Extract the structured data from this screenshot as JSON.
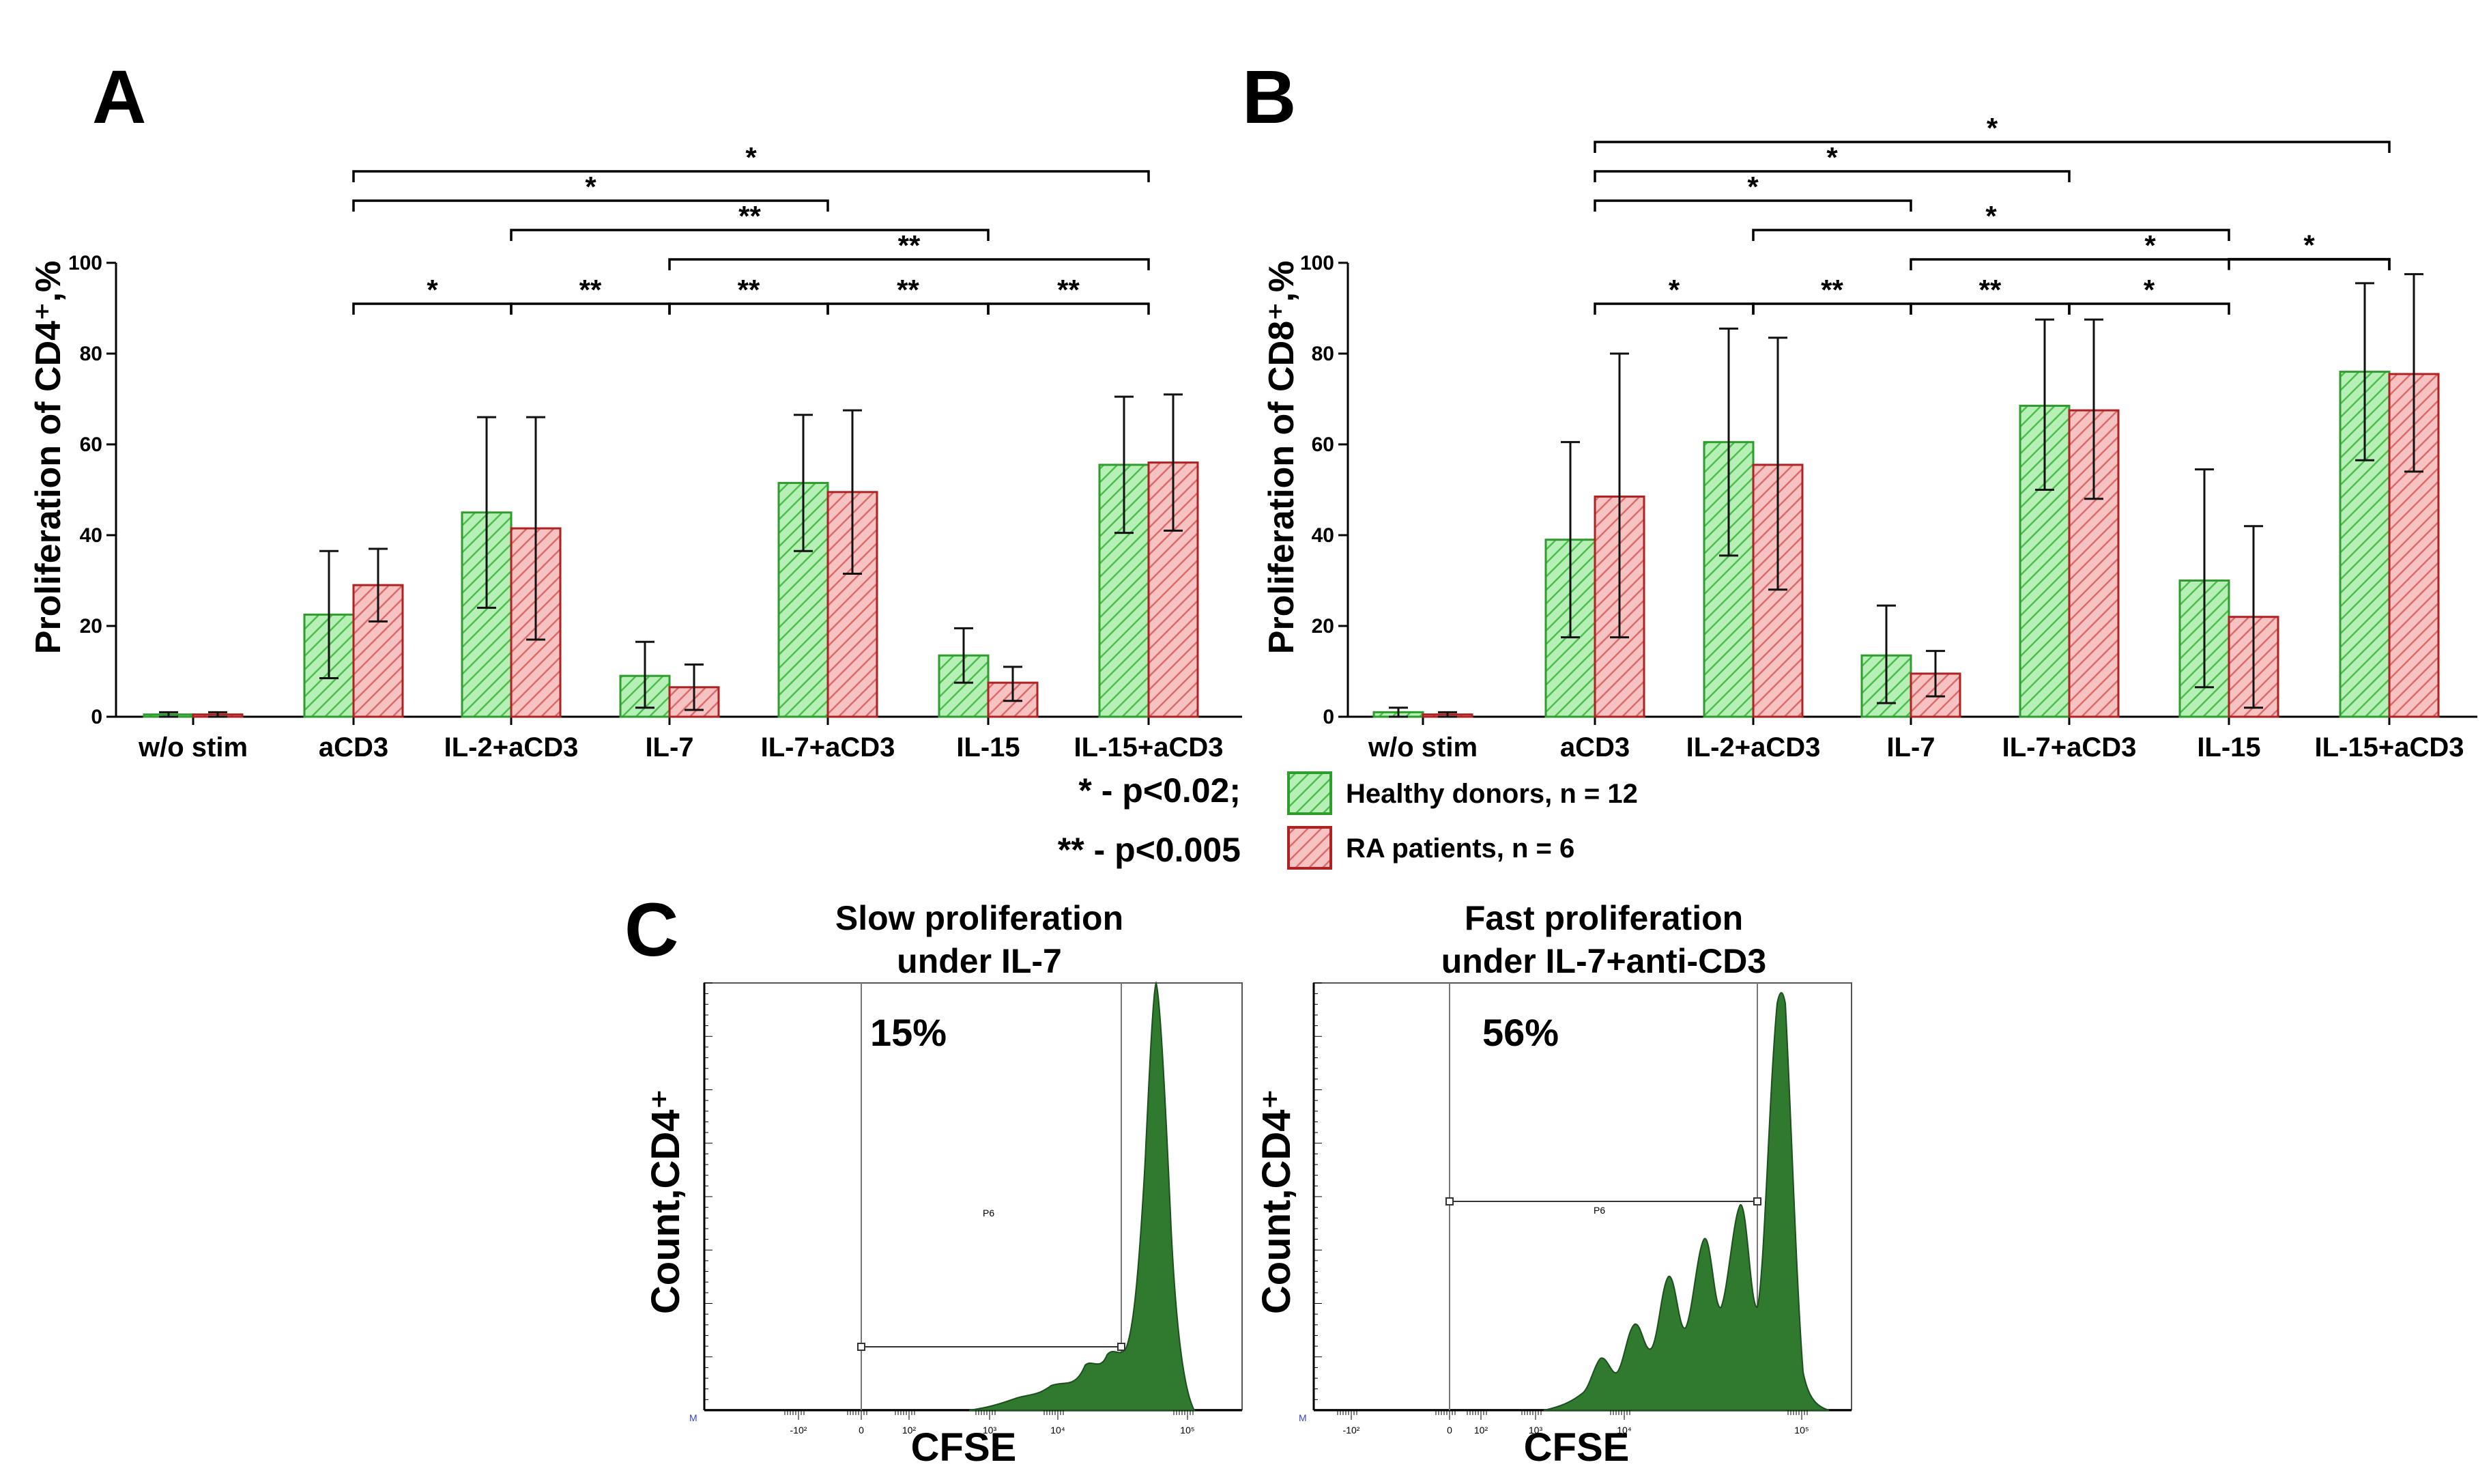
{
  "colors": {
    "healthy_fill": "#9be59b",
    "healthy_edge": "#2e9d2e",
    "ra_fill": "#f0a3a3",
    "ra_edge": "#b02222",
    "histogram": "#2f7a2f"
  },
  "chart_data": [
    {
      "panel": "A",
      "type": "bar",
      "ylabel": "Proliferation of CD4⁺,%",
      "ylim": [
        0,
        100
      ],
      "yticks": [
        0,
        20,
        40,
        60,
        80,
        100
      ],
      "categories": [
        "w/o stim",
        "aCD3",
        "IL-2+aCD3",
        "IL-7",
        "IL-7+aCD3",
        "IL-15",
        "IL-15+aCD3"
      ],
      "series": [
        {
          "name": "Healthy donors, n = 12",
          "values": [
            0.5,
            22.5,
            45,
            9,
            51.5,
            13.5,
            55.5
          ],
          "err_low": [
            0,
            8.5,
            24,
            2,
            36.5,
            7.5,
            40.5
          ],
          "err_high": [
            1,
            36.5,
            66,
            16.5,
            66.5,
            19.5,
            70.5
          ]
        },
        {
          "name": "RA patients, n = 6",
          "values": [
            0.5,
            29,
            41.5,
            6.5,
            49.5,
            7.5,
            56
          ],
          "err_low": [
            0,
            21,
            17,
            1.5,
            31.5,
            3.5,
            41
          ],
          "err_high": [
            1,
            37,
            66,
            11.5,
            67.5,
            11,
            71
          ]
        }
      ],
      "brackets": [
        {
          "from": 1,
          "to": 2,
          "label": "*"
        },
        {
          "from": 2,
          "to": 3,
          "label": "**"
        },
        {
          "from": 3,
          "to": 4,
          "label": "**"
        },
        {
          "from": 4,
          "to": 5,
          "label": "**"
        },
        {
          "from": 5,
          "to": 6,
          "label": "**"
        },
        {
          "from": 3,
          "to": 6,
          "label": "**"
        },
        {
          "from": 2,
          "to": 5,
          "label": "**"
        },
        {
          "from": 1,
          "to": 4,
          "label": "*"
        },
        {
          "from": 1,
          "to": 6,
          "label": "*"
        }
      ]
    },
    {
      "panel": "B",
      "type": "bar",
      "ylabel": "Proliferation of CD8⁺,%",
      "ylim": [
        0,
        100
      ],
      "yticks": [
        0,
        20,
        40,
        60,
        80,
        100
      ],
      "categories": [
        "w/o stim",
        "aCD3",
        "IL-2+aCD3",
        "IL-7",
        "IL-7+aCD3",
        "IL-15",
        "IL-15+aCD3"
      ],
      "series": [
        {
          "name": "Healthy donors, n = 12",
          "values": [
            1,
            39,
            60.5,
            13.5,
            68.5,
            30,
            76
          ],
          "err_low": [
            0,
            17.5,
            35.5,
            3,
            50,
            6.5,
            56.5
          ],
          "err_high": [
            2,
            60.5,
            85.5,
            24.5,
            87.5,
            54.5,
            95.5
          ]
        },
        {
          "name": "RA patients, n = 6",
          "values": [
            0.5,
            48.5,
            55.5,
            9.5,
            67.5,
            22,
            75.5
          ],
          "err_low": [
            0,
            17.5,
            28,
            4.5,
            48,
            2,
            54
          ],
          "err_high": [
            1,
            80,
            83.5,
            14.5,
            87.5,
            42,
            97.5
          ]
        }
      ],
      "brackets": [
        {
          "from": 1,
          "to": 2,
          "label": "*"
        },
        {
          "from": 2,
          "to": 3,
          "label": "**"
        },
        {
          "from": 3,
          "to": 4,
          "label": "**"
        },
        {
          "from": 4,
          "to": 5,
          "label": "*"
        },
        {
          "from": 5,
          "to": 6,
          "label": "*"
        },
        {
          "from": 3,
          "to": 6,
          "label": "*"
        },
        {
          "from": 2,
          "to": 5,
          "label": "*"
        },
        {
          "from": 1,
          "to": 3,
          "label": "*"
        },
        {
          "from": 1,
          "to": 4,
          "label": "*"
        },
        {
          "from": 1,
          "to": 6,
          "label": "*"
        }
      ]
    }
  ],
  "panels": {
    "a": "A",
    "b": "B",
    "c": "C"
  },
  "significance": {
    "p1": "* - p<0.02;",
    "p2": "** - p<0.005"
  },
  "legend": {
    "healthy": "Healthy donors, n = 12",
    "ra": "RA patients, n = 6"
  },
  "histograms": [
    {
      "title1": "Slow proliferation",
      "title2": "under IL-7",
      "percent": "15%",
      "gate": "P6",
      "ylabel": "Count,CD4⁺",
      "xlabel": "CFSE",
      "corner": "M",
      "xticks": [
        "-10²",
        "0",
        "10²",
        "10³",
        "10⁴",
        "10⁵"
      ]
    },
    {
      "title1": "Fast proliferation",
      "title2": "under IL-7+anti-CD3",
      "percent": "56%",
      "gate": "P6",
      "ylabel": "Count,CD4⁺",
      "xlabel": "CFSE",
      "corner": "M",
      "xticks": [
        "-10²",
        "0",
        "10²",
        "10³",
        "10⁴",
        "10⁵"
      ]
    }
  ]
}
